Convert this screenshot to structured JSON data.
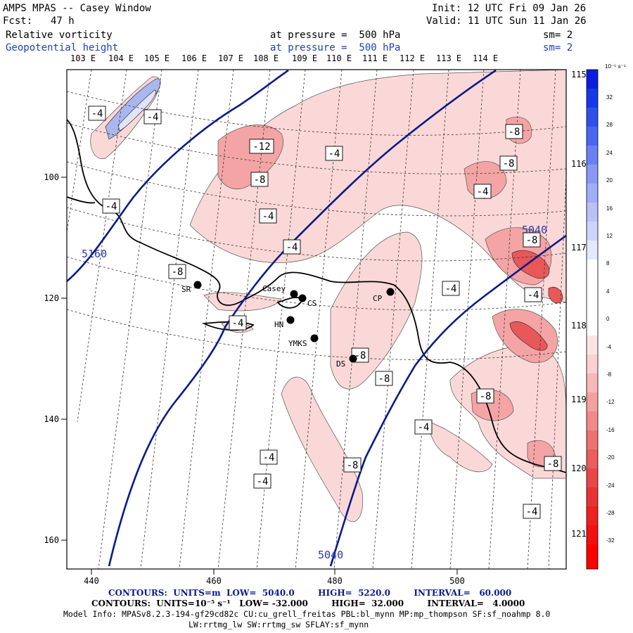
{
  "header": {
    "title": "AMPS MPAS -- Casey Window",
    "fcst_label": "Fcst:",
    "fcst_value": "47 h",
    "init": "Init: 12 UTC Fri 09 Jan 26",
    "valid": "Valid: 11 UTC Sun 11 Jan 26",
    "field1_name": "Relative vorticity",
    "field1_level": "at pressure =  500 hPa",
    "field1_sm": "sm= 2",
    "field2_name": "Geopotential height",
    "field2_level": "at pressure =  500 hPa",
    "field2_sm": "sm= 2"
  },
  "top_longitudes": [
    "103 E",
    "104 E",
    "105 E",
    "106 E",
    "107 E",
    "108 E",
    "109 E",
    "110 E",
    "111 E",
    "112 E",
    "113 E",
    "114 E"
  ],
  "right_longitudes": [
    "115 E",
    "116 E",
    "117 E",
    "118 E",
    "119 E",
    "120 E",
    "121 E"
  ],
  "x_ticks": [
    "440",
    "460",
    "480",
    "500"
  ],
  "y_ticks": [
    "100",
    "120",
    "140",
    "160"
  ],
  "stations": [
    {
      "name": "SR"
    },
    {
      "name": "Casey"
    },
    {
      "name": "CS"
    },
    {
      "name": "CP"
    },
    {
      "name": "HN"
    },
    {
      "name": "YMKS"
    },
    {
      "name": "DS"
    }
  ],
  "height_labels": [
    "5160",
    "5040",
    "5040"
  ],
  "vorticity_labels": [
    "-4",
    "-4",
    "-12",
    "-4",
    "-8",
    "-8",
    "-8",
    "-4",
    "-4",
    "-4",
    "-4",
    "-8",
    "-8",
    "-4",
    "-4",
    "-8",
    "-8",
    "-8",
    "-4",
    "-4",
    "-4",
    "-8",
    "-4",
    "-8",
    "-4"
  ],
  "colorbar": {
    "unit": "10⁻⁵ s⁻¹",
    "ticks": [
      "32",
      "28",
      "24",
      "20",
      "16",
      "12",
      "8",
      "4",
      "0",
      "-4",
      "-8",
      "-12",
      "-16",
      "-20",
      "-24",
      "-28",
      "-32"
    ]
  },
  "footer": {
    "line1": "CONTOURS:  UNITS=m  LOW=  5040.0        HIGH=  5220.0        INTERVAL=   60.000",
    "line2": "CONTOURS:  UNITS=10⁻⁵ s⁻¹   LOW= -32.000        HIGH=  32.000        INTERVAL=   4.0000",
    "line3": "Model Info: MPASv8.2.3-194-gf29cd82c CU:cu_grell_freitas PBL:bl_mynn MP:mp_thompson SF:sf_noahmp 8.0",
    "line4": "LW:rrtmg_lw SW:rrtmg_sw SFLAY:sf_mynn"
  },
  "colors": {
    "height_contour": "#0a1a8a",
    "neg_fill_light": "#fbd8d8",
    "neg_fill_mid": "#f4a4a4",
    "neg_fill_dark": "#e85858",
    "pos_fill": "#a9b7ef"
  }
}
